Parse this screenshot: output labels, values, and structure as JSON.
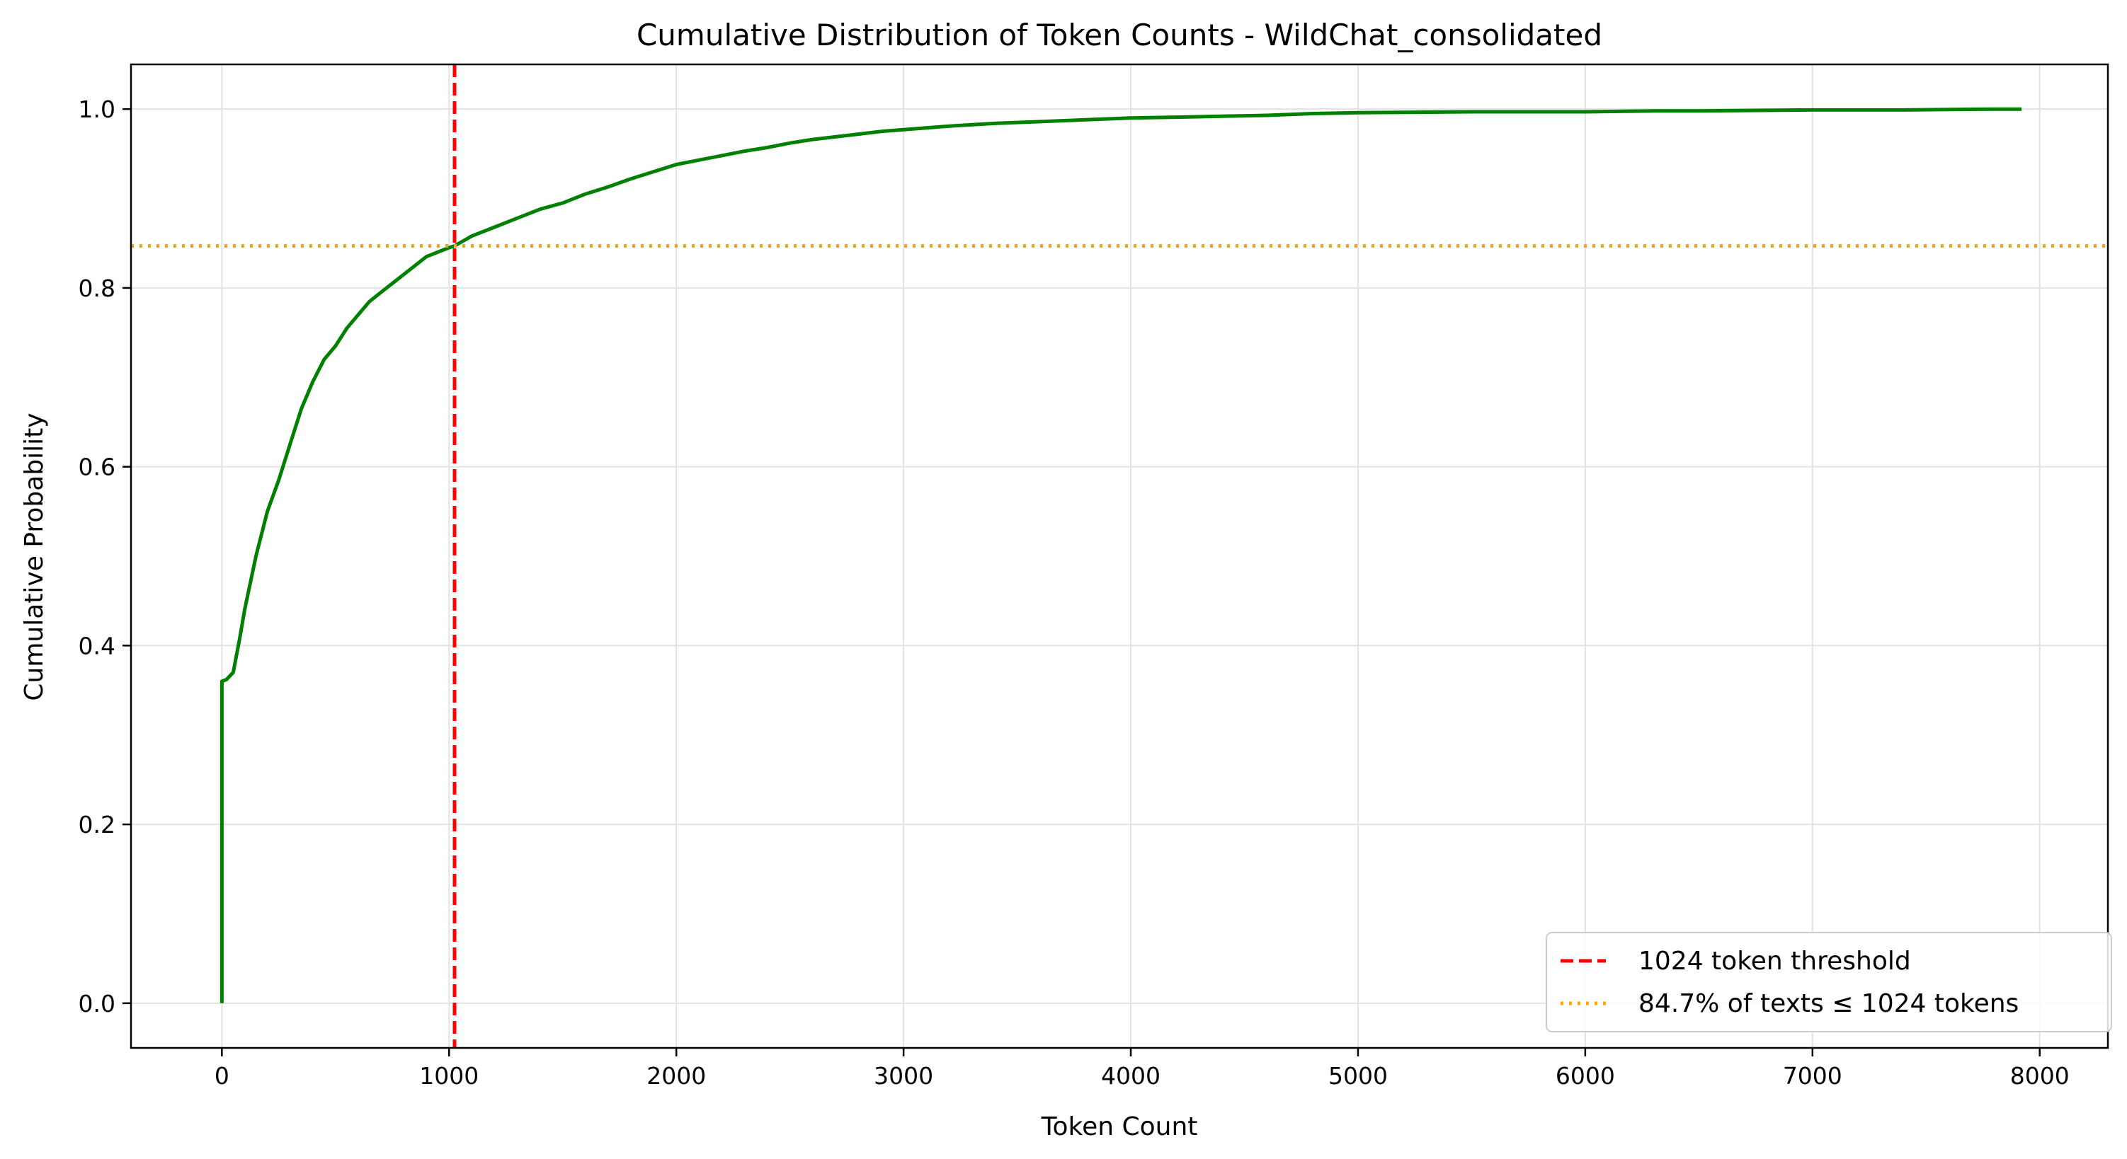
{
  "chart_data": {
    "type": "line",
    "title": "Cumulative Distribution of Token Counts - WildChat_consolidated",
    "xlabel": "Token Count",
    "ylabel": "Cumulative Probability",
    "xlim": [
      -400,
      8300
    ],
    "ylim": [
      -0.05,
      1.05
    ],
    "grid": true,
    "legend_position": "lower-right",
    "x_ticks": [
      0,
      1000,
      2000,
      3000,
      4000,
      5000,
      6000,
      7000,
      8000
    ],
    "y_ticks": [
      0.0,
      0.2,
      0.4,
      0.6,
      0.8,
      1.0
    ],
    "x_tick_labels": [
      "0",
      "1000",
      "2000",
      "3000",
      "4000",
      "5000",
      "6000",
      "7000",
      "8000"
    ],
    "y_tick_labels": [
      "0.0",
      "0.2",
      "0.4",
      "0.6",
      "0.8",
      "1.0"
    ],
    "series": [
      {
        "color": "#008000",
        "x": [
          0,
          0,
          0,
          20,
          50,
          80,
          100,
          150,
          200,
          250,
          300,
          350,
          400,
          450,
          500,
          550,
          600,
          650,
          700,
          800,
          900,
          1000,
          1024,
          1100,
          1200,
          1300,
          1400,
          1500,
          1600,
          1700,
          1800,
          1900,
          2000,
          2100,
          2200,
          2300,
          2400,
          2500,
          2600,
          2700,
          2800,
          2900,
          3000,
          3200,
          3400,
          3600,
          3800,
          4000,
          4200,
          4400,
          4600,
          4700,
          4800,
          5000,
          5500,
          6000,
          6300,
          6500,
          7000,
          7400,
          7600,
          7800,
          7920
        ],
        "y": [
          0.0,
          0.36,
          0.36,
          0.362,
          0.37,
          0.41,
          0.44,
          0.5,
          0.55,
          0.585,
          0.625,
          0.665,
          0.695,
          0.72,
          0.735,
          0.755,
          0.77,
          0.785,
          0.795,
          0.815,
          0.835,
          0.845,
          0.847,
          0.858,
          0.868,
          0.878,
          0.888,
          0.895,
          0.905,
          0.913,
          0.922,
          0.93,
          0.938,
          0.943,
          0.948,
          0.953,
          0.957,
          0.962,
          0.966,
          0.969,
          0.972,
          0.975,
          0.977,
          0.981,
          0.984,
          0.986,
          0.988,
          0.99,
          0.991,
          0.992,
          0.993,
          0.994,
          0.995,
          0.996,
          0.997,
          0.997,
          0.998,
          0.998,
          0.999,
          0.999,
          0.9995,
          1.0,
          1.0
        ]
      }
    ],
    "reference_lines": [
      {
        "orientation": "vertical",
        "value": 1024,
        "color": "#ff0000",
        "style": "dashed",
        "label": "1024 token threshold"
      },
      {
        "orientation": "horizontal",
        "value": 0.847,
        "color": "#ffa500",
        "style": "dotted",
        "label": "84.7% of texts ≤ 1024 tokens"
      }
    ],
    "legend": [
      {
        "label": "1024 token threshold",
        "color": "#ff0000",
        "style": "dashed"
      },
      {
        "label": "84.7% of texts ≤ 1024 tokens",
        "color": "#ffa500",
        "style": "dotted"
      }
    ]
  }
}
